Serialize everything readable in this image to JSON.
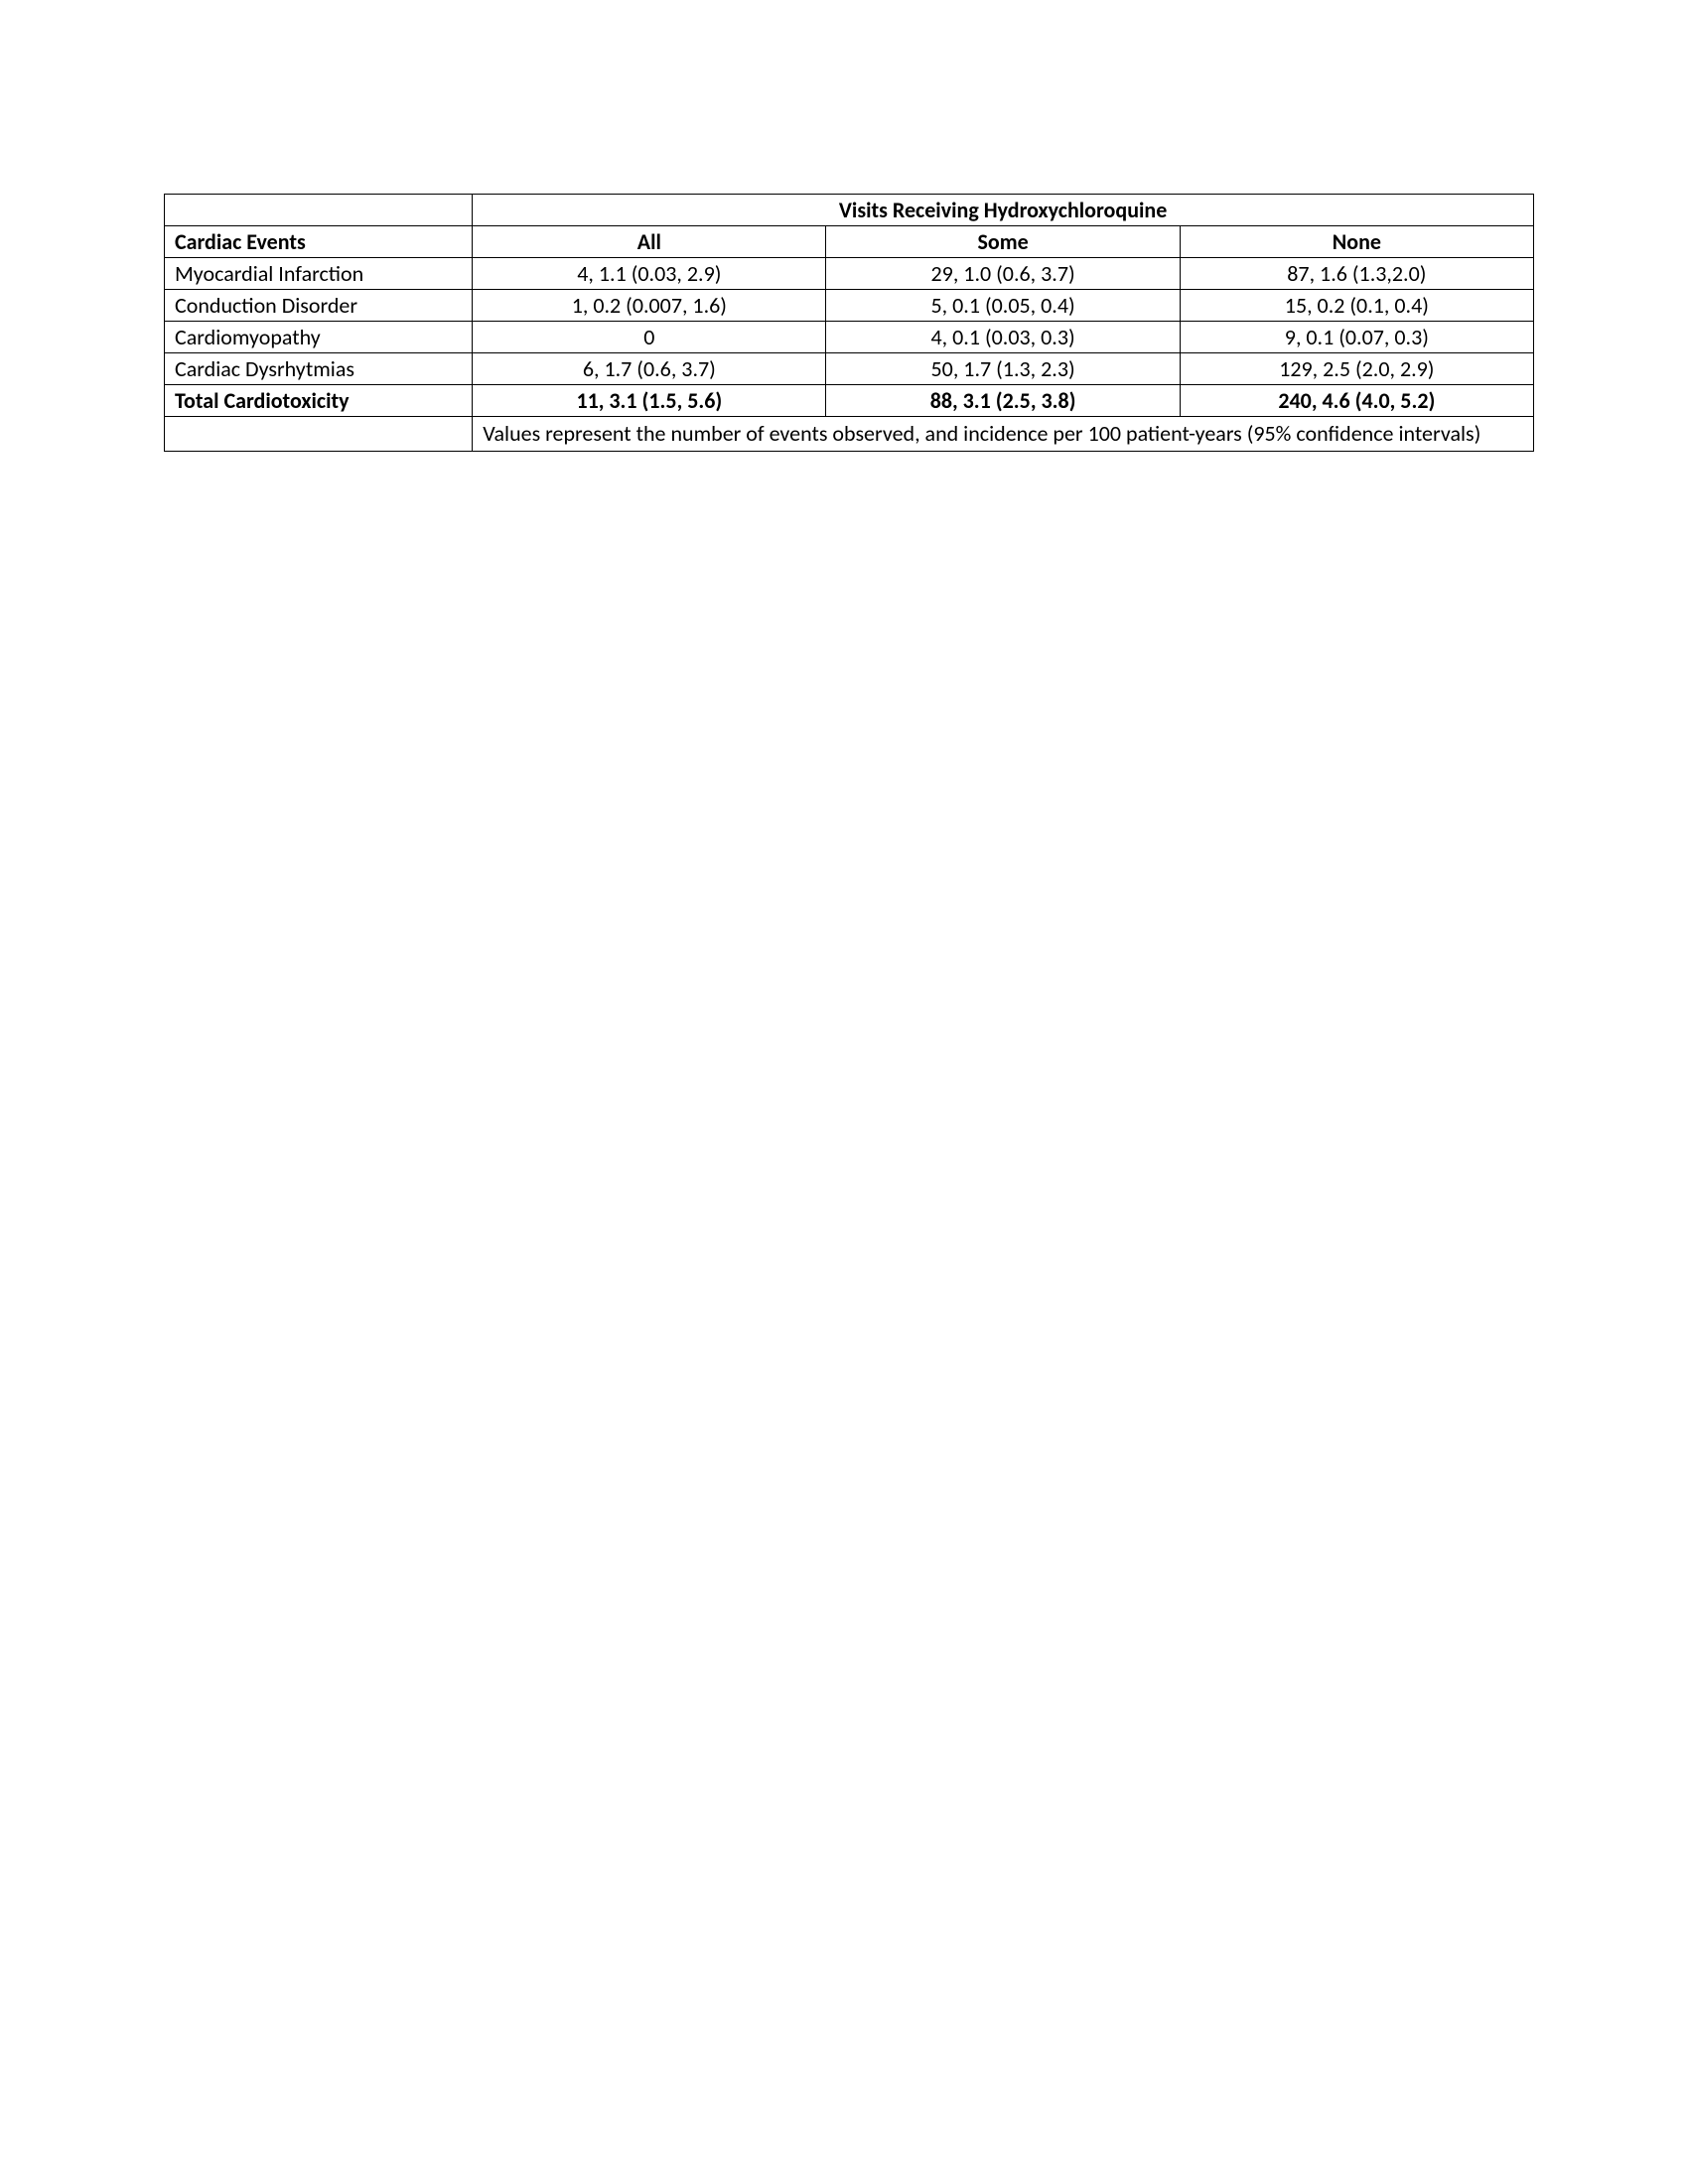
{
  "table": {
    "spanning_header": "Visits Receiving Hydroxychloroquine",
    "row_header": "Cardiac Events",
    "col_headers": [
      "All",
      "Some",
      "None"
    ],
    "rows": [
      {
        "label": "Myocardial Infarction",
        "bold": false,
        "cells": [
          "4, 1.1 (0.03, 2.9)",
          "29, 1.0 (0.6, 3.7)",
          "87, 1.6 (1.3,2.0)"
        ]
      },
      {
        "label": "Conduction Disorder",
        "bold": false,
        "cells": [
          "1, 0.2 (0.007, 1.6)",
          "5, 0.1 (0.05, 0.4)",
          "15, 0.2 (0.1,  0.4)"
        ]
      },
      {
        "label": "Cardiomyopathy",
        "bold": false,
        "cells": [
          "0",
          "4, 0.1 (0.03, 0.3)",
          "9, 0.1 (0.07, 0.3)"
        ]
      },
      {
        "label": "Cardiac Dysrhytmias",
        "bold": false,
        "cells": [
          "6, 1.7 (0.6, 3.7)",
          "50, 1.7 (1.3, 2.3)",
          "129, 2.5 (2.0, 2.9)"
        ]
      },
      {
        "label": "Total Cardiotoxicity",
        "bold": true,
        "cells": [
          "11, 3.1 (1.5, 5.6)",
          "88, 3.1 (2.5, 3.8)",
          "240, 4.6 (4.0, 5.2)"
        ]
      }
    ],
    "footnote": "Values represent the number of events observed, and incidence per 100 patient-years (95% confidence intervals)",
    "border_color": "#000000",
    "background_color": "#ffffff",
    "text_color": "#000000",
    "font_size": 22
  }
}
